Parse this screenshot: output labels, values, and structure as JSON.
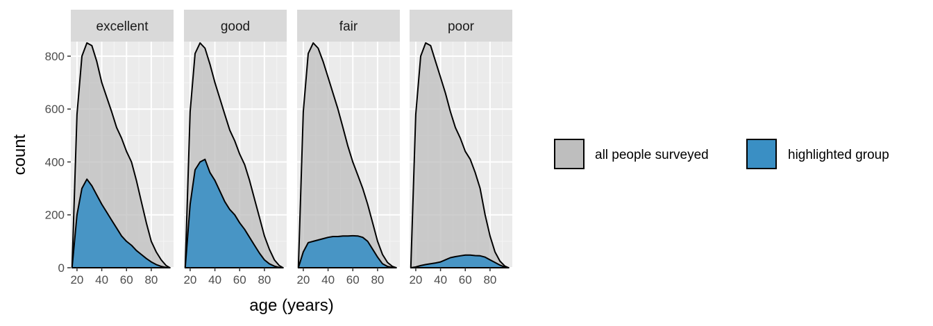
{
  "chart_data": {
    "type": "area",
    "xlabel": "age (years)",
    "ylabel": "count",
    "xlim": [
      15,
      98
    ],
    "ylim": [
      0,
      855
    ],
    "x_ticks": [
      20,
      40,
      60,
      80
    ],
    "y_ticks": [
      0,
      200,
      400,
      600,
      800
    ],
    "grid": true,
    "legend_position": "right",
    "legend": [
      {
        "label": "all people surveyed",
        "color": "#bebebe"
      },
      {
        "label": "highlighted group",
        "color": "#3a8fc4"
      }
    ],
    "panels": [
      {
        "label": "excellent",
        "series": [
          {
            "name": "all people surveyed",
            "color": "#bebebe",
            "x": [
              16,
              20,
              24,
              28,
              32,
              36,
              40,
              44,
              48,
              52,
              56,
              60,
              64,
              68,
              72,
              76,
              80,
              84,
              88,
              92,
              95
            ],
            "y": [
              0,
              580,
              800,
              850,
              840,
              780,
              700,
              645,
              590,
              530,
              490,
              440,
              400,
              330,
              250,
              170,
              100,
              60,
              30,
              8,
              0
            ]
          },
          {
            "name": "highlighted group",
            "color": "#3a8fc4",
            "x": [
              16,
              20,
              24,
              28,
              32,
              36,
              40,
              44,
              48,
              52,
              56,
              60,
              64,
              68,
              72,
              76,
              80,
              84,
              88,
              92,
              95
            ],
            "y": [
              0,
              200,
              300,
              335,
              310,
              275,
              240,
              210,
              180,
              150,
              120,
              100,
              85,
              65,
              50,
              35,
              22,
              12,
              5,
              1,
              0
            ]
          }
        ]
      },
      {
        "label": "good",
        "series": [
          {
            "name": "all people surveyed",
            "color": "#bebebe",
            "x": [
              16,
              20,
              24,
              28,
              32,
              36,
              40,
              44,
              48,
              52,
              56,
              60,
              64,
              68,
              72,
              76,
              80,
              84,
              88,
              92,
              95
            ],
            "y": [
              0,
              590,
              810,
              850,
              830,
              770,
              700,
              640,
              580,
              520,
              480,
              430,
              390,
              330,
              260,
              190,
              120,
              70,
              30,
              8,
              0
            ]
          },
          {
            "name": "highlighted group",
            "color": "#3a8fc4",
            "x": [
              16,
              20,
              24,
              28,
              32,
              36,
              40,
              44,
              48,
              52,
              56,
              60,
              64,
              68,
              72,
              76,
              80,
              84,
              88,
              92,
              95
            ],
            "y": [
              0,
              240,
              370,
              400,
              410,
              360,
              330,
              290,
              250,
              220,
              200,
              170,
              145,
              115,
              85,
              55,
              30,
              15,
              6,
              1,
              0
            ]
          }
        ]
      },
      {
        "label": "fair",
        "series": [
          {
            "name": "all people surveyed",
            "color": "#bebebe",
            "x": [
              16,
              20,
              24,
              28,
              32,
              36,
              40,
              44,
              48,
              52,
              56,
              60,
              64,
              68,
              72,
              76,
              80,
              84,
              88,
              92,
              95
            ],
            "y": [
              0,
              590,
              810,
              850,
              830,
              780,
              720,
              660,
              600,
              530,
              460,
              400,
              350,
              300,
              240,
              170,
              100,
              50,
              20,
              5,
              0
            ]
          },
          {
            "name": "highlighted group",
            "color": "#3a8fc4",
            "x": [
              16,
              20,
              24,
              28,
              32,
              36,
              40,
              44,
              48,
              52,
              56,
              60,
              64,
              68,
              72,
              76,
              80,
              84,
              88,
              92,
              95
            ],
            "y": [
              0,
              60,
              95,
              100,
              105,
              110,
              115,
              118,
              118,
              120,
              120,
              121,
              120,
              115,
              100,
              70,
              40,
              15,
              5,
              1,
              0
            ]
          }
        ]
      },
      {
        "label": "poor",
        "series": [
          {
            "name": "all people surveyed",
            "color": "#bebebe",
            "x": [
              16,
              20,
              24,
              28,
              32,
              36,
              40,
              44,
              48,
              52,
              56,
              60,
              64,
              68,
              72,
              76,
              80,
              84,
              88,
              92,
              95
            ],
            "y": [
              0,
              580,
              800,
              850,
              840,
              780,
              720,
              660,
              590,
              530,
              490,
              440,
              410,
              360,
              300,
              200,
              120,
              60,
              25,
              6,
              0
            ]
          },
          {
            "name": "highlighted group",
            "color": "#3a8fc4",
            "x": [
              16,
              20,
              24,
              28,
              32,
              36,
              40,
              44,
              48,
              52,
              56,
              60,
              64,
              68,
              72,
              76,
              80,
              84,
              88,
              92,
              95
            ],
            "y": [
              0,
              3,
              8,
              12,
              15,
              18,
              22,
              30,
              38,
              42,
              45,
              48,
              48,
              46,
              45,
              40,
              30,
              20,
              10,
              2,
              0
            ]
          }
        ]
      }
    ]
  }
}
